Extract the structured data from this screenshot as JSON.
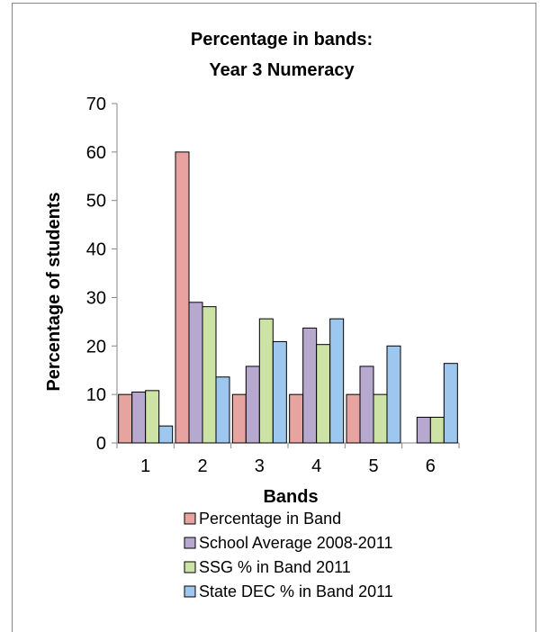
{
  "chart_data": {
    "type": "bar",
    "title": [
      "Percentage in bands:",
      "Year 3 Numeracy"
    ],
    "xlabel": "Bands",
    "ylabel": "Percentage of students",
    "categories": [
      "1",
      "2",
      "3",
      "4",
      "5",
      "6"
    ],
    "ylim": [
      0,
      70
    ],
    "yticks": [
      0,
      10,
      20,
      30,
      40,
      50,
      60,
      70
    ],
    "grid": false,
    "legend_position": "bottom",
    "series": [
      {
        "name": "Percentage in Band",
        "color": "#e6a3a0",
        "values": [
          10,
          60,
          10,
          10,
          10,
          0
        ]
      },
      {
        "name": "School Average 2008-2011",
        "color": "#b7a8cf",
        "values": [
          10.5,
          29,
          15.8,
          23.7,
          15.8,
          5.3
        ]
      },
      {
        "name": "SSG % in Band 2011",
        "color": "#cde3a5",
        "values": [
          10.8,
          28.1,
          25.6,
          20.3,
          10,
          5.3
        ]
      },
      {
        "name": "State DEC % in Band 2011",
        "color": "#9ec7ef",
        "values": [
          3.5,
          13.6,
          20.9,
          25.6,
          20,
          16.4
        ]
      }
    ]
  }
}
